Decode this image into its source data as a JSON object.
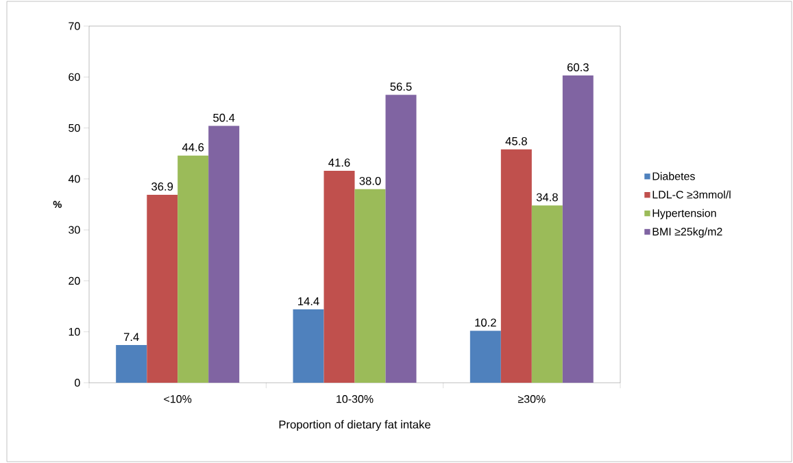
{
  "chart_data": {
    "type": "bar",
    "xlabel": "Proportion of dietary fat intake",
    "ylabel": "%",
    "categories": [
      "<10%",
      "10-30%",
      "≥30%"
    ],
    "series": [
      {
        "name": "Diabetes",
        "color": "#4f81bd",
        "values": [
          7.4,
          14.4,
          10.2
        ],
        "value_labels": [
          "7.4",
          "14.4",
          "10.2"
        ]
      },
      {
        "name": "LDL-C ≥3mmol/l",
        "color": "#c0504d",
        "values": [
          36.9,
          41.6,
          45.8
        ],
        "value_labels": [
          "36.9",
          "41.6",
          "45.8"
        ]
      },
      {
        "name": "Hypertension",
        "color": "#9bbb59",
        "values": [
          44.6,
          38.0,
          34.8
        ],
        "value_labels": [
          "44.6",
          "38.0",
          "34.8"
        ]
      },
      {
        "name": "BMI ≥25kg/m2",
        "color": "#8064a2",
        "values": [
          50.4,
          56.5,
          60.3
        ],
        "value_labels": [
          "50.4",
          "56.5",
          "60.3"
        ]
      }
    ],
    "ylim": [
      0,
      70
    ],
    "yticks": [
      0,
      10,
      20,
      30,
      40,
      50,
      60,
      70
    ],
    "grid": false,
    "legend": "right"
  }
}
